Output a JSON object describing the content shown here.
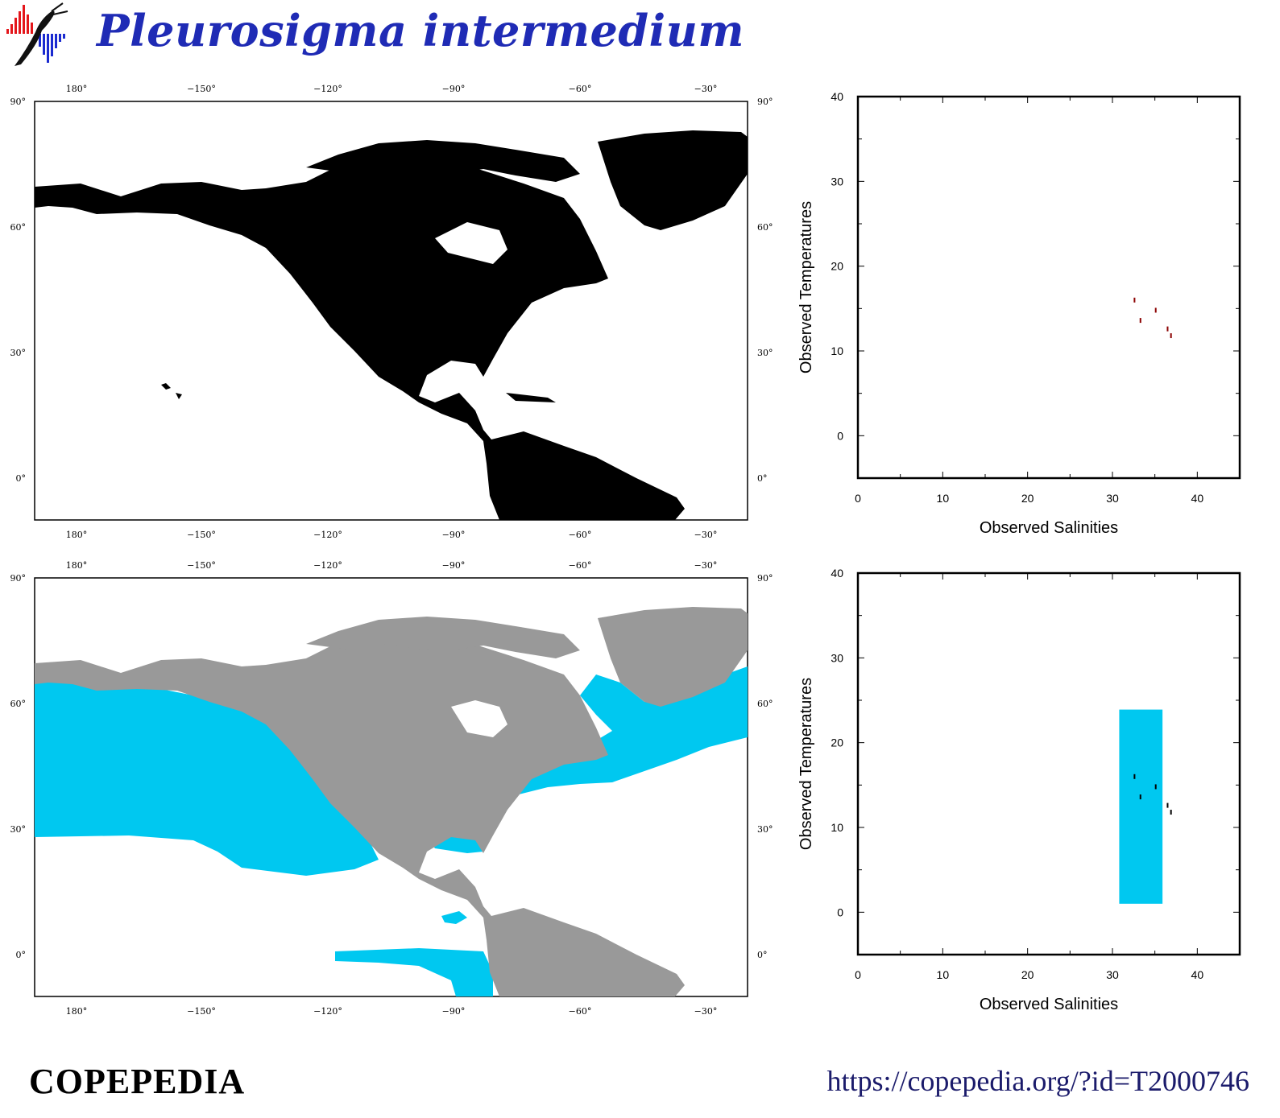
{
  "header": {
    "title": "Pleurosigma intermedium",
    "logo_icon": "copepedia-logo-icon"
  },
  "maps": [
    {
      "name": "observations-map",
      "land_color": "#000000",
      "ocean_color": "#ffffff",
      "top_ticks": [
        "180°",
        "−150°",
        "−120°",
        "−90°",
        "−60°",
        "−30°"
      ],
      "bottom_ticks": [
        "180°",
        "−150°",
        "−120°",
        "−90°",
        "−60°",
        "−30°"
      ],
      "left_ticks": [
        "90°",
        "60°",
        "30°",
        "0°"
      ],
      "right_ticks": [
        "90°",
        "60°",
        "30°",
        "0°"
      ]
    },
    {
      "name": "habitat-map",
      "land_color": "#999999",
      "habitat_color": "#00c8f0",
      "top_ticks": [
        "180°",
        "−150°",
        "−120°",
        "−90°",
        "−60°",
        "−30°"
      ],
      "bottom_ticks": [
        "180°",
        "−150°",
        "−120°",
        "−90°",
        "−60°",
        "−30°"
      ],
      "left_ticks": [
        "90°",
        "60°",
        "30°",
        "0°"
      ],
      "right_ticks": [
        "90°",
        "60°",
        "30°",
        "0°"
      ]
    }
  ],
  "chart_data": [
    {
      "type": "scatter",
      "xlabel": "Observed Salinities",
      "ylabel": "Observed Temperatures",
      "xlim": [
        0,
        45
      ],
      "ylim": [
        -5,
        40
      ],
      "x_ticks": [
        0,
        10,
        20,
        30,
        40
      ],
      "y_ticks": [
        0,
        10,
        20,
        30,
        40
      ],
      "points": [
        {
          "x": 32.6,
          "y": 16.0
        },
        {
          "x": 33.3,
          "y": 13.6
        },
        {
          "x": 35.1,
          "y": 14.8
        },
        {
          "x": 36.5,
          "y": 12.6
        },
        {
          "x": 36.9,
          "y": 11.8
        }
      ],
      "point_color": "#8b0000"
    },
    {
      "type": "scatter",
      "xlabel": "Observed Salinities",
      "ylabel": "Observed Temperatures",
      "xlim": [
        0,
        45
      ],
      "ylim": [
        -5,
        40
      ],
      "x_ticks": [
        0,
        10,
        20,
        30,
        40
      ],
      "y_ticks": [
        0,
        10,
        20,
        30,
        40
      ],
      "envelope": {
        "x": [
          30.8,
          35.9
        ],
        "y": [
          1.0,
          23.9
        ],
        "color": "#00c8f0"
      },
      "points": [
        {
          "x": 32.6,
          "y": 16.0
        },
        {
          "x": 33.3,
          "y": 13.6
        },
        {
          "x": 35.1,
          "y": 14.8
        },
        {
          "x": 36.5,
          "y": 12.6
        },
        {
          "x": 36.9,
          "y": 11.8
        }
      ],
      "point_color": "#000000"
    }
  ],
  "footer": {
    "brand": "COPEPEDIA",
    "url": "https://copepedia.org/?id=T2000746"
  }
}
